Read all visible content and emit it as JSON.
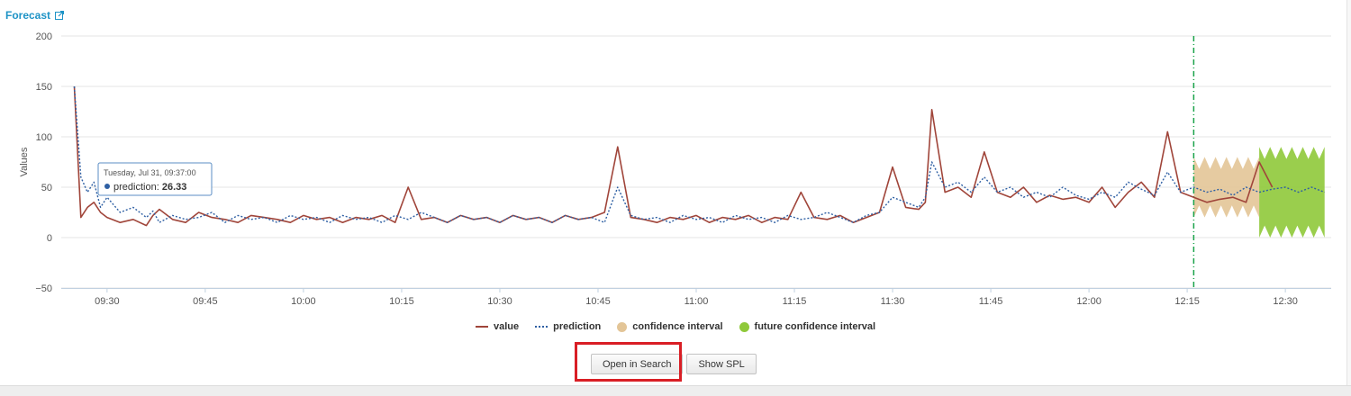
{
  "panel": {
    "title": "Forecast",
    "title_icon": "external-link-icon",
    "title_color": "#1e93c6"
  },
  "buttons": {
    "open_in_search": "Open in Search",
    "show_spl": "Show SPL"
  },
  "highlight_color": "#d91e25",
  "tooltip": {
    "date": "Tuesday, Jul 31, 09:37:00",
    "series": "prediction",
    "value": "26.33"
  },
  "chart_data": {
    "type": "line",
    "ylabel": "Values",
    "xlabel": "",
    "ylim": [
      -50,
      200
    ],
    "yticks": [
      -50,
      0,
      50,
      100,
      150,
      200
    ],
    "xlim": [
      "09:23",
      "12:37"
    ],
    "xticks": [
      "09:30",
      "09:45",
      "10:00",
      "10:15",
      "10:30",
      "10:45",
      "11:00",
      "11:15",
      "11:30",
      "11:45",
      "12:00",
      "12:15",
      "12:30"
    ],
    "grid": true,
    "legend_position": "bottom",
    "forecast_start": "12:16",
    "forecast_end": "12:36",
    "legend": [
      {
        "name": "value",
        "marker": "line",
        "color": "#a0453a"
      },
      {
        "name": "prediction",
        "marker": "dotted",
        "color": "#2e5fa3"
      },
      {
        "name": "confidence interval",
        "marker": "circle",
        "color": "#e3c597"
      },
      {
        "name": "future confidence interval",
        "marker": "circle",
        "color": "#8fc93a"
      }
    ],
    "series": [
      {
        "name": "value",
        "color": "#a0453a",
        "x": [
          "09:25",
          "09:26",
          "09:27",
          "09:28",
          "09:29",
          "09:30",
          "09:32",
          "09:34",
          "09:36",
          "09:37",
          "09:38",
          "09:40",
          "09:42",
          "09:44",
          "09:46",
          "09:48",
          "09:50",
          "09:52",
          "09:54",
          "09:56",
          "09:58",
          "10:00",
          "10:02",
          "10:04",
          "10:06",
          "10:08",
          "10:10",
          "10:12",
          "10:14",
          "10:16",
          "10:18",
          "10:20",
          "10:22",
          "10:24",
          "10:26",
          "10:28",
          "10:30",
          "10:32",
          "10:34",
          "10:36",
          "10:38",
          "10:40",
          "10:42",
          "10:44",
          "10:46",
          "10:48",
          "10:50",
          "10:52",
          "10:54",
          "10:56",
          "10:58",
          "11:00",
          "11:02",
          "11:04",
          "11:06",
          "11:08",
          "11:10",
          "11:12",
          "11:14",
          "11:16",
          "11:18",
          "11:20",
          "11:22",
          "11:24",
          "11:26",
          "11:28",
          "11:30",
          "11:32",
          "11:34",
          "11:35",
          "11:36",
          "11:38",
          "11:40",
          "11:42",
          "11:44",
          "11:46",
          "11:48",
          "11:50",
          "11:52",
          "11:54",
          "11:56",
          "11:58",
          "12:00",
          "12:02",
          "12:04",
          "12:06",
          "12:08",
          "12:10",
          "12:12",
          "12:14",
          "12:16",
          "12:18",
          "12:20",
          "12:22",
          "12:24",
          "12:26",
          "12:28"
        ],
        "values": [
          150,
          20,
          30,
          35,
          25,
          20,
          15,
          18,
          12,
          22,
          28,
          18,
          15,
          25,
          20,
          18,
          15,
          22,
          20,
          18,
          15,
          22,
          18,
          20,
          15,
          20,
          18,
          22,
          15,
          50,
          18,
          20,
          15,
          22,
          18,
          20,
          15,
          22,
          18,
          20,
          15,
          22,
          18,
          20,
          25,
          90,
          20,
          18,
          15,
          20,
          18,
          22,
          15,
          20,
          18,
          22,
          15,
          20,
          18,
          45,
          20,
          18,
          22,
          15,
          20,
          25,
          70,
          30,
          28,
          35,
          127,
          45,
          50,
          40,
          85,
          45,
          40,
          50,
          35,
          42,
          38,
          40,
          35,
          50,
          30,
          45,
          55,
          40,
          105,
          45,
          40,
          35,
          38,
          40,
          35,
          75,
          50
        ]
      },
      {
        "name": "prediction",
        "color": "#2e5fa3",
        "x": [
          "09:25",
          "09:26",
          "09:27",
          "09:28",
          "09:29",
          "09:30",
          "09:32",
          "09:34",
          "09:36",
          "09:37",
          "09:38",
          "09:40",
          "09:42",
          "09:44",
          "09:46",
          "09:48",
          "09:50",
          "09:52",
          "09:54",
          "09:56",
          "09:58",
          "10:00",
          "10:02",
          "10:04",
          "10:06",
          "10:08",
          "10:10",
          "10:12",
          "10:14",
          "10:16",
          "10:18",
          "10:20",
          "10:22",
          "10:24",
          "10:26",
          "10:28",
          "10:30",
          "10:32",
          "10:34",
          "10:36",
          "10:38",
          "10:40",
          "10:42",
          "10:44",
          "10:46",
          "10:48",
          "10:50",
          "10:52",
          "10:54",
          "10:56",
          "10:58",
          "11:00",
          "11:02",
          "11:04",
          "11:06",
          "11:08",
          "11:10",
          "11:12",
          "11:14",
          "11:16",
          "11:18",
          "11:20",
          "11:22",
          "11:24",
          "11:26",
          "11:28",
          "11:30",
          "11:32",
          "11:34",
          "11:35",
          "11:36",
          "11:38",
          "11:40",
          "11:42",
          "11:44",
          "11:46",
          "11:48",
          "11:50",
          "11:52",
          "11:54",
          "11:56",
          "11:58",
          "12:00",
          "12:02",
          "12:04",
          "12:06",
          "12:08",
          "12:10",
          "12:12",
          "12:14",
          "12:16",
          "12:18",
          "12:20",
          "12:22",
          "12:24",
          "12:26",
          "12:28",
          "12:30",
          "12:32",
          "12:34",
          "12:36"
        ],
        "values": [
          150,
          60,
          45,
          55,
          30,
          40,
          25,
          30,
          20,
          26.33,
          15,
          22,
          18,
          20,
          25,
          15,
          22,
          18,
          20,
          15,
          22,
          18,
          20,
          15,
          22,
          18,
          20,
          15,
          22,
          18,
          25,
          20,
          15,
          22,
          18,
          20,
          15,
          22,
          18,
          20,
          15,
          22,
          18,
          20,
          15,
          50,
          22,
          18,
          20,
          15,
          22,
          18,
          20,
          15,
          22,
          18,
          20,
          15,
          22,
          18,
          20,
          25,
          20,
          15,
          22,
          25,
          40,
          35,
          30,
          40,
          75,
          50,
          55,
          45,
          60,
          45,
          50,
          40,
          45,
          40,
          50,
          42,
          38,
          45,
          40,
          55,
          48,
          42,
          65,
          45,
          50,
          45,
          48,
          42,
          50,
          45,
          48,
          50,
          45,
          50,
          45
        ]
      },
      {
        "name": "confidence interval",
        "color": "#e3c597",
        "x": [
          "12:16",
          "12:26"
        ],
        "lower": [
          20,
          20
        ],
        "upper": [
          80,
          80
        ]
      },
      {
        "name": "future confidence interval",
        "color": "#8fc93a",
        "x": [
          "12:26",
          "12:36"
        ],
        "lower": [
          0,
          0
        ],
        "upper": [
          90,
          90
        ]
      }
    ]
  }
}
